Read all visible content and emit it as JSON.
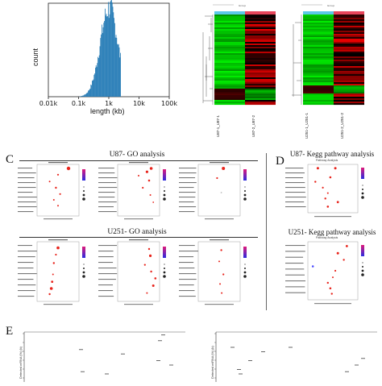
{
  "panel_letters": {
    "c": "C",
    "d": "D",
    "e": "E"
  },
  "histogram": {
    "ylabel": "count",
    "xlabel": "length (kb)",
    "x_ticks": [
      "0.01k",
      "0.1k",
      "1k",
      "10k",
      "100k"
    ],
    "bar_color": "#1f77b4"
  },
  "heatmap1": {
    "col_labels": [
      "U87-1_U87-1",
      "U87-2_U87-2"
    ],
    "header_colors": [
      "#5bc8e8",
      "#e8455a"
    ]
  },
  "heatmap2": {
    "col_labels": [
      "U251-1_U251-1",
      "U251-2_U251-2"
    ],
    "header_colors": [
      "#5bc8e8",
      "#e8455a"
    ]
  },
  "go_sections": [
    {
      "title": "U87- GO analysis"
    },
    {
      "title": "U251- GO analysis"
    }
  ],
  "kegg_sections": [
    {
      "title": "U87- Kegg pathway analysis",
      "subtitle": "Pathway Analysis"
    },
    {
      "title": "U251- Kegg pathway analysis",
      "subtitle": "Pathway Analysis"
    }
  ],
  "e_plots": {
    "ylabels": [
      "Detected mRNA (%) (b)",
      "Detected miRNA (%) (b)"
    ]
  },
  "colors": {
    "heat_green": "#00d000",
    "heat_red": "#ff0000",
    "dot_red": "#e8241c",
    "gradient_top": "#e0187a",
    "gradient_bottom": "#2b2be0"
  }
}
